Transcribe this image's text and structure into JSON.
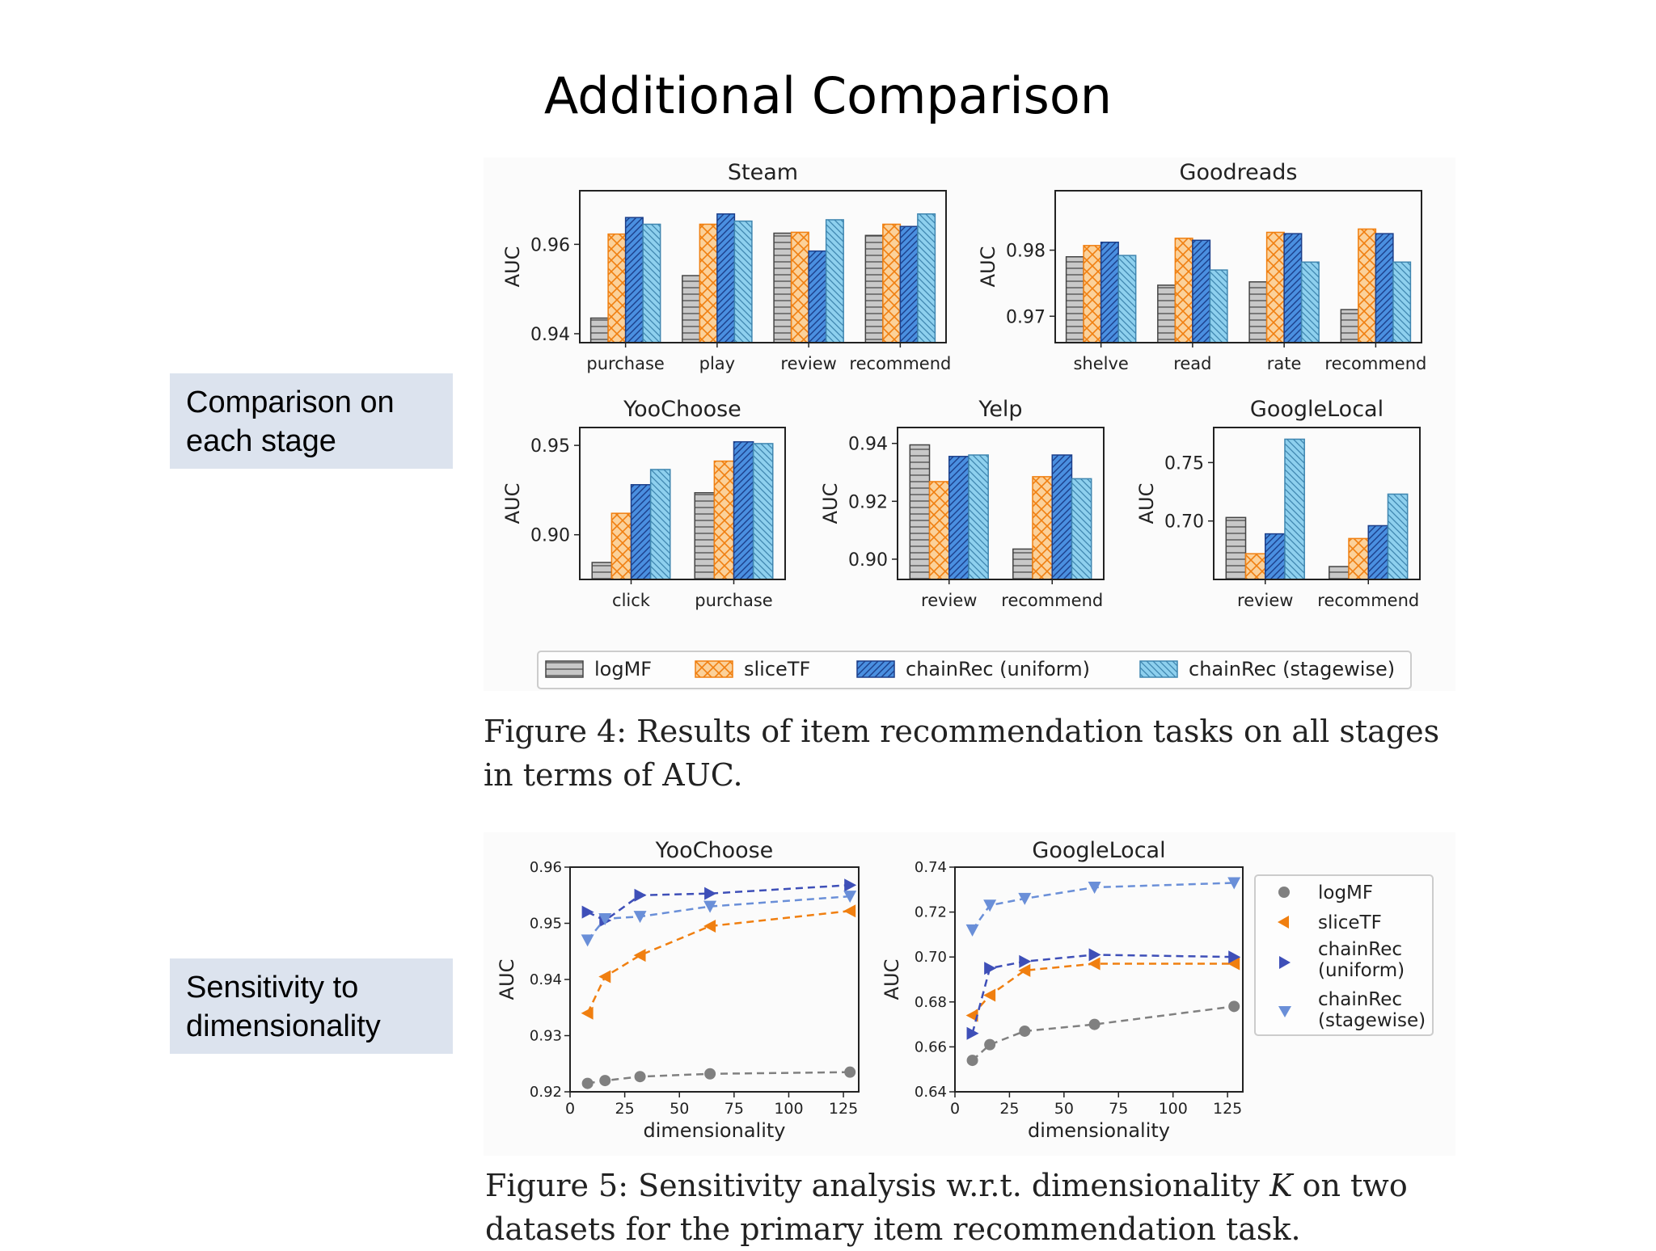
{
  "slide": {
    "title": "Additional Comparison",
    "side_labels": [
      "Comparison on each stage",
      "Sensitivity to dimensionality"
    ]
  },
  "figure4": {
    "caption": "Figure 4: Results of item recommendation tasks on all stages in terms of AUC.",
    "legend": [
      "logMF",
      "sliceTF",
      "chainRec (uniform)",
      "chainRec (stagewise)"
    ]
  },
  "figure5": {
    "caption_parts": [
      "Figure 5: Sensitivity analysis w.r.t. dimensionality ",
      "K",
      " on two datasets for the primary item recommendation task."
    ],
    "legend": [
      "logMF",
      "sliceTF",
      "chainRec\n(uniform)",
      "chainRec\n(stagewise)"
    ]
  },
  "colors": {
    "logMF": "#c8c8c8",
    "sliceTF": "#fbd19a",
    "chainRec_uniform": "#4a8fe0",
    "chainRec_stagewise": "#8ed0ee",
    "line_logMF": "#808080",
    "line_sliceTF": "#f07f10",
    "line_uniform": "#3e4fb8",
    "line_stagewise": "#6a8fd8"
  },
  "chart_data": [
    {
      "type": "bar",
      "title": "Steam",
      "ylabel": "AUC",
      "ylim": [
        0.938,
        0.972
      ],
      "yticks": [
        0.94,
        0.96
      ],
      "categories": [
        "purchase",
        "play",
        "review",
        "recommend"
      ],
      "series": [
        {
          "name": "logMF",
          "values": [
            0.9435,
            0.953,
            0.9625,
            0.962
          ]
        },
        {
          "name": "sliceTF",
          "values": [
            0.9623,
            0.9645,
            0.9627,
            0.9645
          ]
        },
        {
          "name": "chainRec (uniform)",
          "values": [
            0.966,
            0.9668,
            0.9585,
            0.964
          ]
        },
        {
          "name": "chainRec (stagewise)",
          "values": [
            0.9645,
            0.9652,
            0.9655,
            0.9668
          ]
        }
      ]
    },
    {
      "type": "bar",
      "title": "Goodreads",
      "ylabel": "AUC",
      "ylim": [
        0.966,
        0.989
      ],
      "yticks": [
        0.97,
        0.98
      ],
      "categories": [
        "shelve",
        "read",
        "rate",
        "recommend"
      ],
      "series": [
        {
          "name": "logMF",
          "values": [
            0.979,
            0.9747,
            0.9752,
            0.971
          ]
        },
        {
          "name": "sliceTF",
          "values": [
            0.9807,
            0.9818,
            0.9827,
            0.9832
          ]
        },
        {
          "name": "chainRec (uniform)",
          "values": [
            0.9812,
            0.9815,
            0.9825,
            0.9825
          ]
        },
        {
          "name": "chainRec (stagewise)",
          "values": [
            0.9792,
            0.977,
            0.9782,
            0.9782
          ]
        }
      ]
    },
    {
      "type": "bar",
      "title": "YooChoose",
      "ylabel": "AUC",
      "ylim": [
        0.875,
        0.96
      ],
      "yticks": [
        0.9,
        0.95
      ],
      "categories": [
        "click",
        "purchase"
      ],
      "series": [
        {
          "name": "logMF",
          "values": [
            0.8845,
            0.9235
          ]
        },
        {
          "name": "sliceTF",
          "values": [
            0.912,
            0.9412
          ]
        },
        {
          "name": "chainRec (uniform)",
          "values": [
            0.928,
            0.952
          ]
        },
        {
          "name": "chainRec (stagewise)",
          "values": [
            0.9365,
            0.951
          ]
        }
      ]
    },
    {
      "type": "bar",
      "title": "Yelp",
      "ylabel": "AUC",
      "ylim": [
        0.893,
        0.9455
      ],
      "yticks": [
        0.9,
        0.92,
        0.94
      ],
      "categories": [
        "review",
        "recommend"
      ],
      "series": [
        {
          "name": "logMF",
          "values": [
            0.9395,
            0.9035
          ]
        },
        {
          "name": "sliceTF",
          "values": [
            0.9268,
            0.9285
          ]
        },
        {
          "name": "chainRec (uniform)",
          "values": [
            0.9355,
            0.936
          ]
        },
        {
          "name": "chainRec (stagewise)",
          "values": [
            0.936,
            0.9278
          ]
        }
      ]
    },
    {
      "type": "bar",
      "title": "GoogleLocal",
      "ylabel": "AUC",
      "ylim": [
        0.65,
        0.78
      ],
      "yticks": [
        0.7,
        0.75
      ],
      "categories": [
        "review",
        "recommend"
      ],
      "series": [
        {
          "name": "logMF",
          "values": [
            0.703,
            0.661
          ]
        },
        {
          "name": "sliceTF",
          "values": [
            0.672,
            0.685
          ]
        },
        {
          "name": "chainRec (uniform)",
          "values": [
            0.689,
            0.696
          ]
        },
        {
          "name": "chainRec (stagewise)",
          "values": [
            0.77,
            0.723
          ]
        }
      ]
    },
    {
      "type": "line",
      "title": "YooChoose",
      "xlabel": "dimensionality",
      "ylabel": "AUC",
      "xlim": [
        0,
        132
      ],
      "ylim": [
        0.92,
        0.96
      ],
      "xticks": [
        0,
        25,
        50,
        75,
        100,
        125
      ],
      "yticks": [
        0.92,
        0.93,
        0.94,
        0.95,
        0.96
      ],
      "x": [
        8,
        16,
        32,
        64,
        128
      ],
      "series": [
        {
          "name": "logMF",
          "values": [
            0.9215,
            0.922,
            0.9227,
            0.9232,
            0.9235
          ]
        },
        {
          "name": "sliceTF",
          "values": [
            0.934,
            0.9405,
            0.9443,
            0.9495,
            0.9522
          ]
        },
        {
          "name": "chainRec (uniform)",
          "values": [
            0.952,
            0.9505,
            0.955,
            0.9553,
            0.9568
          ]
        },
        {
          "name": "chainRec (stagewise)",
          "values": [
            0.947,
            0.9508,
            0.9512,
            0.953,
            0.9548
          ]
        }
      ]
    },
    {
      "type": "line",
      "title": "GoogleLocal",
      "xlabel": "dimensionality",
      "ylabel": "AUC",
      "xlim": [
        0,
        132
      ],
      "ylim": [
        0.64,
        0.74
      ],
      "xticks": [
        0,
        25,
        50,
        75,
        100,
        125
      ],
      "yticks": [
        0.64,
        0.66,
        0.68,
        0.7,
        0.72,
        0.74
      ],
      "x": [
        8,
        16,
        32,
        64,
        128
      ],
      "series": [
        {
          "name": "logMF",
          "values": [
            0.654,
            0.661,
            0.667,
            0.67,
            0.678
          ]
        },
        {
          "name": "sliceTF",
          "values": [
            0.674,
            0.683,
            0.694,
            0.697,
            0.697
          ]
        },
        {
          "name": "chainRec (uniform)",
          "values": [
            0.666,
            0.695,
            0.698,
            0.701,
            0.7
          ]
        },
        {
          "name": "chainRec (stagewise)",
          "values": [
            0.712,
            0.723,
            0.726,
            0.731,
            0.733
          ]
        }
      ]
    }
  ]
}
